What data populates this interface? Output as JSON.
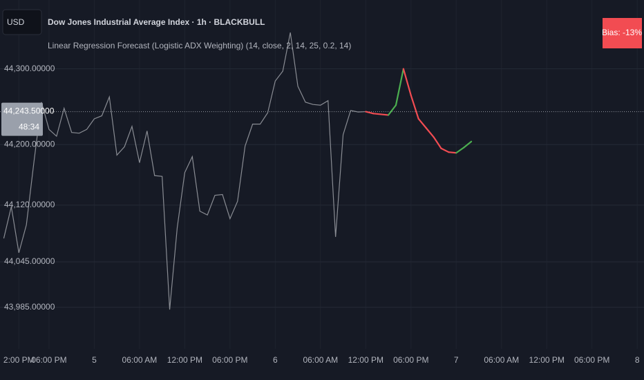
{
  "currency": "USD",
  "chart_data": {
    "type": "line",
    "title": "Dow Jones Industrial Average Index · 1h · BLACKBULL",
    "subtitle": "Linear Regression Forecast (Logistic ADX Weighting) (14, close, 2, 14, 25, 0.2, 14)",
    "badge": "Bias: -13%",
    "badge_color": "#f24c52",
    "background": "#161a25",
    "grid_color": "#252a36",
    "grid": true,
    "last_price": {
      "value": 44243.5,
      "label": "44,243.50000",
      "countdown": "48:34"
    },
    "ylim": [
      43930,
      44391
    ],
    "yticks": [
      {
        "value": 44300,
        "label": "44,300.00000"
      },
      {
        "value": 44200,
        "label": "44,200.00000"
      },
      {
        "value": 44120,
        "label": "44,120.00000"
      },
      {
        "value": 44045,
        "label": "44,045.00000"
      },
      {
        "value": 43985,
        "label": "43,985.00000"
      }
    ],
    "xlim": [
      -12.5,
      72.9
    ],
    "xticks": [
      {
        "value": -10,
        "label": "2:00 PM"
      },
      {
        "value": -6,
        "label": "06:00 PM"
      },
      {
        "value": 0,
        "label": "5"
      },
      {
        "value": 6,
        "label": "06:00 AM"
      },
      {
        "value": 12,
        "label": "12:00 PM"
      },
      {
        "value": 18,
        "label": "06:00 PM"
      },
      {
        "value": 24,
        "label": "6"
      },
      {
        "value": 30,
        "label": "06:00 AM"
      },
      {
        "value": 36,
        "label": "12:00 PM"
      },
      {
        "value": 42,
        "label": "06:00 PM"
      },
      {
        "value": 48,
        "label": "7"
      },
      {
        "value": 54,
        "label": "06:00 AM"
      },
      {
        "value": 60,
        "label": "12:00 PM"
      },
      {
        "value": 66,
        "label": "06:00 PM"
      },
      {
        "value": 72,
        "label": "8"
      }
    ],
    "series": [
      {
        "color": "#8a8d94",
        "x": [
          -12,
          -11,
          -10,
          -9,
          -8,
          -7,
          -6,
          -5,
          -4,
          -3,
          -2,
          -1,
          0,
          1,
          2,
          3,
          4,
          5,
          6,
          7,
          8,
          9,
          10,
          11,
          12,
          13,
          14,
          15,
          16,
          17,
          18,
          19,
          20,
          21,
          22,
          23,
          24,
          25,
          26,
          27,
          28,
          29,
          30,
          31,
          32,
          33,
          34,
          35,
          36
        ],
        "values": [
          44076,
          44118,
          44057,
          44094,
          44177,
          44256,
          44220,
          44211,
          44248,
          44216,
          44215,
          44220,
          44234,
          44238,
          44263,
          44186,
          44197,
          44224,
          44176,
          44218,
          44159,
          44158,
          43982,
          44090,
          44163,
          44184,
          44112,
          44107,
          44133,
          44134,
          44102,
          44125,
          44198,
          44227,
          44227,
          44242,
          44284,
          44297,
          44348,
          44277,
          44256,
          44253,
          44252,
          44258,
          44078,
          44213,
          44245,
          44243,
          44243.5
        ]
      },
      {
        "up_color": "#4caf50",
        "down_color": "#f24c52",
        "x": [
          36,
          37,
          38,
          39,
          40,
          41,
          42,
          43,
          44,
          45,
          46,
          47,
          48,
          49,
          50
        ],
        "values": [
          44243.5,
          44241,
          44240,
          44239,
          44252,
          44300,
          44265,
          44234,
          44222,
          44210,
          44195,
          44190,
          44189,
          44196,
          44204
        ]
      }
    ]
  }
}
